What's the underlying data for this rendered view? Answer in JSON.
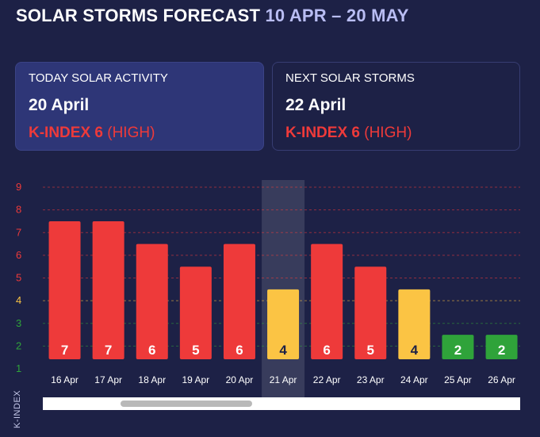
{
  "header": {
    "title": "SOLAR STORMS FORECAST",
    "range": "10 APR – 20 MAY"
  },
  "cards": {
    "today": {
      "label": "TODAY SOLAR ACTIVITY",
      "date": "20 April",
      "kindex": "K-INDEX 6",
      "level": "(HIGH)"
    },
    "next": {
      "label": "NEXT SOLAR STORMS",
      "date": "22 April",
      "kindex": "K-INDEX 6",
      "level": "(HIGH)"
    }
  },
  "colors": {
    "background": "#1d2146",
    "high": "#ee3a3a",
    "moderate": "#fbc444",
    "low": "#2fa33a",
    "range_text": "#b9bdf3"
  },
  "chart_data": {
    "type": "bar",
    "categories": [
      "16 Apr",
      "17 Apr",
      "18 Apr",
      "19 Apr",
      "20 Apr",
      "21 Apr",
      "22 Apr",
      "23 Apr",
      "24 Apr",
      "25 Apr",
      "26 Apr"
    ],
    "values": [
      7,
      7,
      6,
      5,
      6,
      4,
      6,
      5,
      4,
      2,
      2
    ],
    "ylabel": "K-INDEX",
    "yticks": [
      1,
      2,
      3,
      4,
      5,
      6,
      7,
      8,
      9
    ],
    "ylim": [
      1,
      9
    ],
    "highlighted_category": "21 Apr",
    "grid": true
  }
}
